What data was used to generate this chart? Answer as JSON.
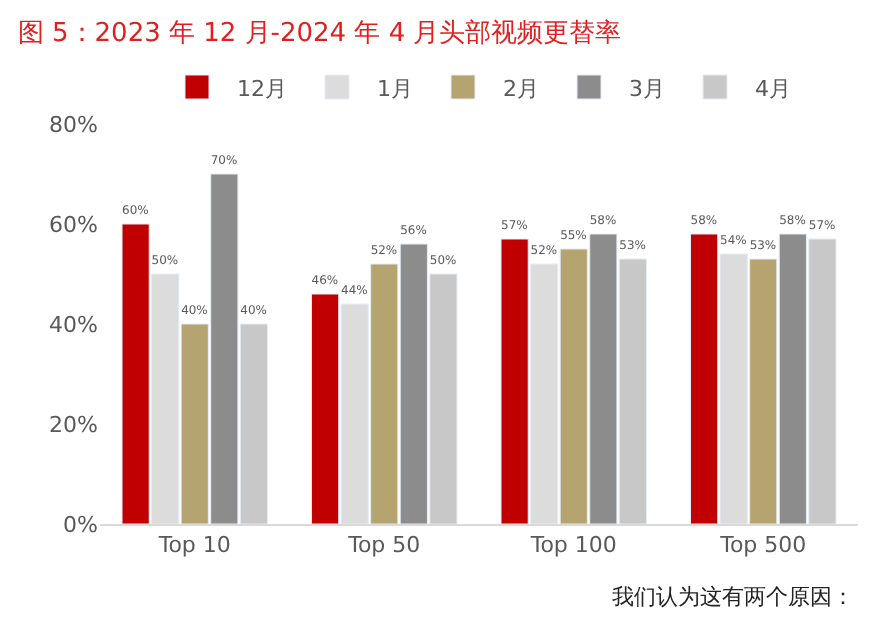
{
  "chart_data": {
    "type": "bar",
    "title": "图 5：2023 年 12 月-2024 年 4 月头部视频更替率",
    "categories": [
      "Top 10",
      "Top 50",
      "Top 100",
      "Top 500"
    ],
    "series": [
      {
        "name": "12月",
        "color": "#c00000",
        "values": [
          60,
          46,
          57,
          58
        ],
        "value_labels": [
          "60%",
          "46%",
          "57%",
          "58%"
        ]
      },
      {
        "name": "1月",
        "color": "#dcdcdc",
        "values": [
          50,
          44,
          52,
          54
        ],
        "value_labels": [
          "50%",
          "44%",
          "52%",
          "54%"
        ]
      },
      {
        "name": "2月",
        "color": "#b5a470",
        "values": [
          40,
          52,
          55,
          53
        ],
        "value_labels": [
          "40%",
          "52%",
          "55%",
          "53%"
        ]
      },
      {
        "name": "3月",
        "color": "#8c8c8c",
        "values": [
          70,
          56,
          58,
          58
        ],
        "value_labels": [
          "70%",
          "56%",
          "58%",
          "58%"
        ]
      },
      {
        "name": "4月",
        "color": "#c8c8c8",
        "values": [
          40,
          50,
          53,
          57
        ],
        "value_labels": [
          "40%",
          "50%",
          "53%",
          "57%"
        ]
      }
    ],
    "ylim": [
      0,
      80
    ],
    "yticks": [
      {
        "value": 0,
        "label": "0%"
      },
      {
        "value": 20,
        "label": "20%"
      },
      {
        "value": 40,
        "label": "40%"
      },
      {
        "value": 60,
        "label": "60%"
      },
      {
        "value": 80,
        "label": "80%"
      }
    ],
    "grid": false,
    "legend": "top",
    "annotations": [
      "我们认为这有两个原因："
    ]
  }
}
